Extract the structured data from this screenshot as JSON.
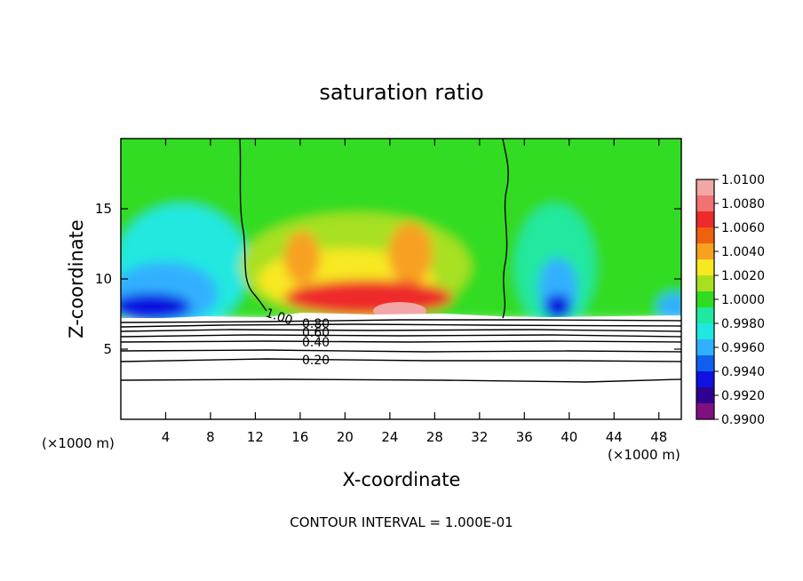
{
  "chart_data": {
    "type": "heatmap",
    "title": "saturation ratio",
    "xlabel": "X-coordinate",
    "ylabel": "Z-coordinate",
    "x_unit_left": "(×1000 m)",
    "x_unit_right": "(×1000 m)",
    "xlim": [
      0,
      50
    ],
    "ylim": [
      0,
      20
    ],
    "xticks": [
      4,
      8,
      12,
      16,
      20,
      24,
      28,
      32,
      36,
      40,
      44,
      48
    ],
    "yticks": [
      5,
      10,
      15
    ],
    "colorbar": {
      "labels": [
        "1.0100",
        "1.0080",
        "1.0060",
        "1.0040",
        "1.0020",
        "1.0000",
        "0.9980",
        "0.9960",
        "0.9940",
        "0.9920",
        "0.9900"
      ],
      "colors": [
        "#f2a6a6",
        "#f07272",
        "#ee2a2a",
        "#f06010",
        "#f8a020",
        "#f8e820",
        "#a8e020",
        "#30dc20",
        "#20e8a0",
        "#20e8e0",
        "#30b0ff",
        "#1060f0",
        "#1010e0",
        "#300090",
        "#801080"
      ]
    },
    "contour_labels": [
      "1.00",
      "0.80",
      "0.60",
      "0.40",
      "0.20"
    ],
    "footer": "CONTOUR INTERVAL = 1.000E-01"
  }
}
